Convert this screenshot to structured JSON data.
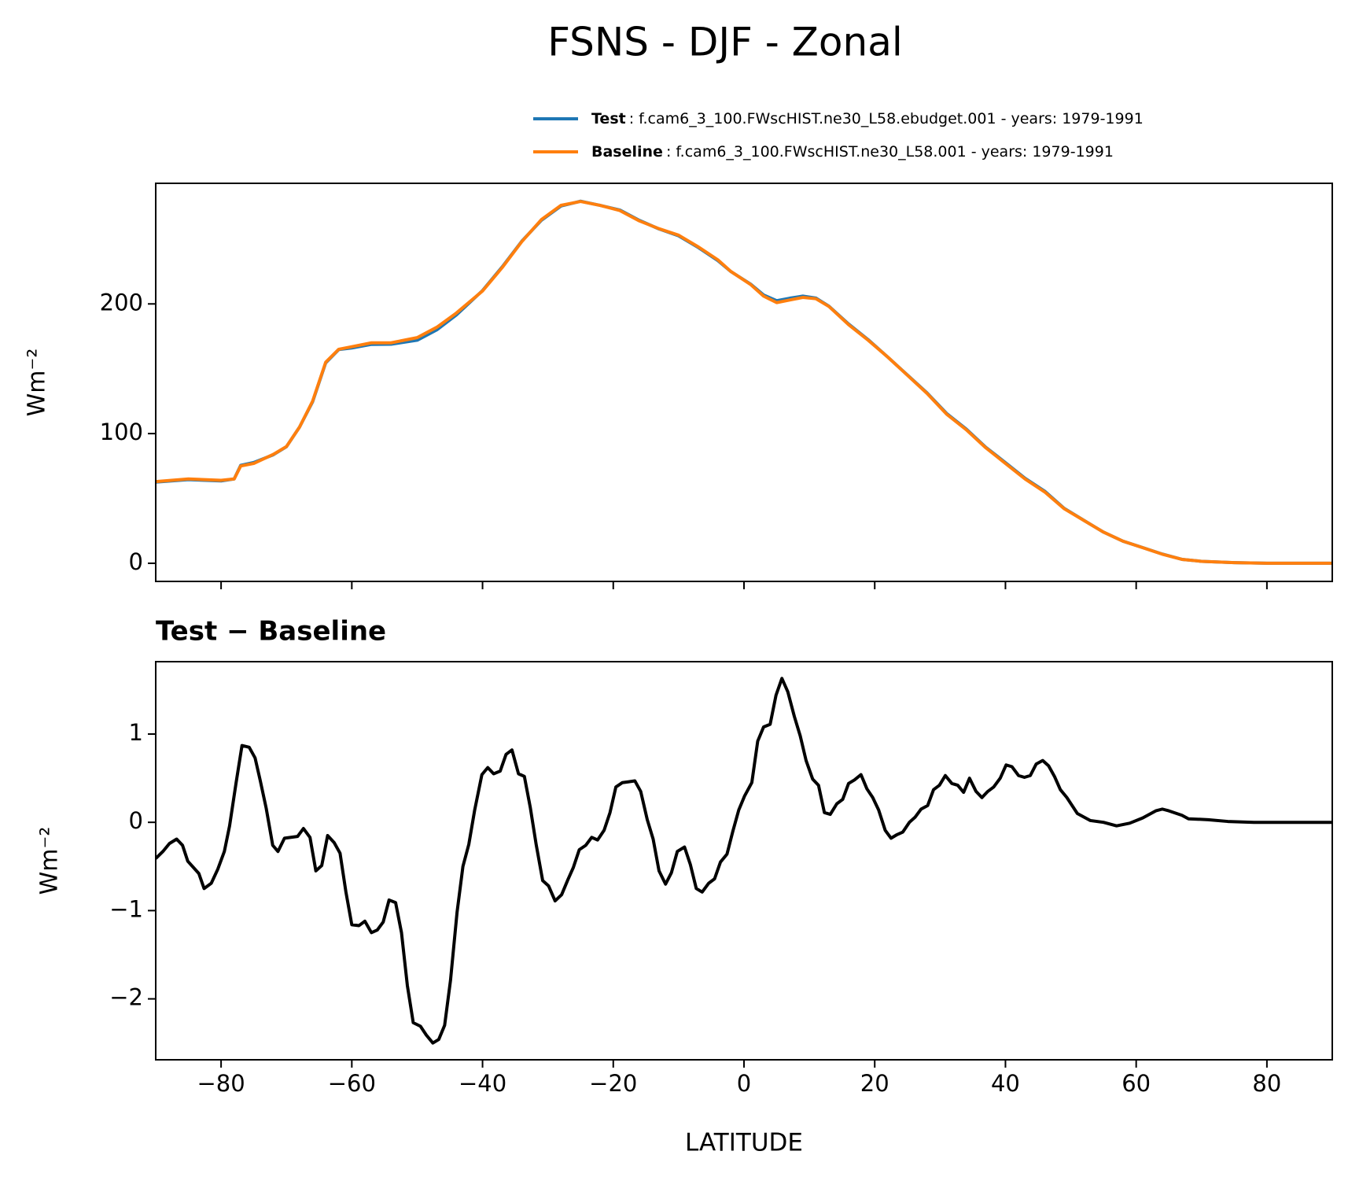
{
  "title": "FSNS - DJF - Zonal",
  "chart_data": [
    {
      "type": "line",
      "ylabel": "Wm⁻²",
      "xlim": [
        -90,
        90
      ],
      "xticks": [
        -80,
        -60,
        -40,
        -20,
        0,
        20,
        40,
        60,
        80
      ],
      "ylim": [
        -14,
        293
      ],
      "yticks": [
        0,
        100,
        200
      ],
      "x": [
        -90,
        -85,
        -80,
        -78,
        -77,
        -75,
        -72,
        -70,
        -68,
        -66,
        -64,
        -62,
        -60,
        -57,
        -54,
        -50,
        -47,
        -44,
        -40,
        -37,
        -34,
        -31,
        -28,
        -25,
        -22,
        -19,
        -16,
        -13,
        -10,
        -7,
        -4,
        -2,
        1,
        3,
        5,
        7,
        9,
        11,
        13,
        16,
        19,
        22,
        25,
        28,
        31,
        34,
        37,
        40,
        43,
        46,
        49,
        52,
        55,
        58,
        61,
        64,
        67,
        70,
        75,
        80,
        90
      ],
      "series": [
        {
          "name": "Test",
          "description": ": f.cam6_3_100.FWscHIST.ne30_L58.ebudget.001 - years: 1979-1991",
          "color": "#1f77b4",
          "values": [
            62.6,
            64.5,
            63.5,
            65,
            75.5,
            77.7,
            83.7,
            89.9,
            105,
            124.5,
            154.5,
            164.8,
            166,
            168.8,
            168.9,
            172,
            180,
            191.5,
            210.3,
            228.5,
            248.3,
            264.5,
            275.5,
            279.2,
            276,
            272.4,
            264.4,
            257.8,
            252.5,
            243.5,
            233.4,
            224.9,
            215.3,
            206.9,
            202.5,
            204.4,
            206,
            204.5,
            198.2,
            184.5,
            172.4,
            159,
            145.2,
            131.4,
            115.5,
            103.5,
            89.4,
            77.6,
            65.5,
            55.6,
            42.3,
            33.1,
            24,
            17,
            12.1,
            7.1,
            3,
            1.5,
            0.5,
            0,
            0
          ]
        },
        {
          "name": "Baseline",
          "description": ": f.cam6_3_100.FWscHIST.ne30_L58.001 - years: 1979-1991",
          "color": "#ff7f0e",
          "values": [
            63,
            65,
            64,
            65,
            75,
            77,
            84,
            90,
            105,
            125,
            155,
            165,
            167,
            170,
            170,
            174,
            182,
            193,
            210,
            228,
            248,
            265,
            276,
            279,
            276,
            272,
            264,
            258,
            253,
            244,
            234,
            225,
            215,
            206,
            201,
            203,
            205,
            204,
            198,
            184,
            172,
            159,
            145,
            131,
            115,
            103,
            89,
            77,
            65,
            55,
            42,
            33,
            24,
            17,
            12,
            7,
            3,
            1.5,
            0.5,
            0,
            0
          ]
        }
      ]
    },
    {
      "type": "line",
      "title": "Test − Baseline",
      "ylabel": "Wm⁻²",
      "xlabel": "LATITUDE",
      "xlim": [
        -90,
        90
      ],
      "xticks": [
        {
          "value": -80,
          "label": "−80"
        },
        {
          "value": -60,
          "label": "−60"
        },
        {
          "value": -40,
          "label": "−40"
        },
        {
          "value": -20,
          "label": "−20"
        },
        0,
        20,
        40,
        60,
        80
      ],
      "ylim": [
        -2.69,
        1.82
      ],
      "yticks": [
        {
          "value": -2,
          "label": "−2"
        },
        {
          "value": -1,
          "label": "−1"
        },
        0,
        1
      ],
      "x": [
        -90,
        -88.9,
        -87.9,
        -86.8,
        -85.9,
        -85.1,
        -83.4,
        -82.6,
        -81.5,
        -80.5,
        -79.5,
        -78.7,
        -77.7,
        -76.8,
        -75.7,
        -74.8,
        -74,
        -73.1,
        -72.1,
        -71.3,
        -70.3,
        -68.3,
        -67.4,
        -66.4,
        -65.5,
        -64.6,
        -63.7,
        -62.7,
        -61.8,
        -60.9,
        -60,
        -58.9,
        -58,
        -57,
        -56.1,
        -55.2,
        -54.3,
        -53.3,
        -52.4,
        -51.5,
        -50.6,
        -49.5,
        -48.6,
        -47.6,
        -46.7,
        -45.8,
        -44.9,
        -43.9,
        -43,
        -42.1,
        -41.2,
        -40.1,
        -39.2,
        -38.3,
        -37.3,
        -36.4,
        -35.5,
        -34.5,
        -33.6,
        -32.7,
        -31.8,
        -30.8,
        -29.9,
        -28.9,
        -27.9,
        -27,
        -26.1,
        -25.2,
        -24.2,
        -23.3,
        -22.4,
        -21.4,
        -20.5,
        -19.6,
        -18.6,
        -17.6,
        -16.7,
        -15.8,
        -14.8,
        -13.9,
        -13,
        -12,
        -11.1,
        -10.2,
        -9.1,
        -8.2,
        -7.3,
        -6.4,
        -5.4,
        -4.5,
        -3.6,
        -2.6,
        -1.7,
        -0.8,
        0.1,
        1.2,
        2.1,
        3,
        4,
        4.9,
        5.8,
        6.7,
        7.7,
        8.6,
        9.5,
        10.5,
        11.4,
        12.3,
        13.2,
        14.2,
        15.1,
        16,
        16.9,
        17.9,
        18.8,
        19.7,
        20.6,
        21.6,
        22.5,
        23.4,
        24.3,
        25.3,
        26.2,
        27.1,
        28.1,
        29,
        29.9,
        30.8,
        31.8,
        32.7,
        33.6,
        34.5,
        35.5,
        36.4,
        37.3,
        38.2,
        39.2,
        40.1,
        41,
        42,
        42.9,
        43.8,
        44.7,
        45.7,
        46.6,
        47.5,
        48.4,
        49.4,
        51,
        53,
        55,
        57,
        59,
        61,
        63,
        64,
        65,
        67,
        68,
        71,
        74,
        78,
        90
      ],
      "series": [
        {
          "color": "#000000",
          "values": [
            -0.41,
            -0.33,
            -0.24,
            -0.19,
            -0.26,
            -0.44,
            -0.58,
            -0.75,
            -0.69,
            -0.53,
            -0.33,
            -0.04,
            0.45,
            0.87,
            0.85,
            0.73,
            0.47,
            0.16,
            -0.26,
            -0.33,
            -0.18,
            -0.16,
            -0.07,
            -0.17,
            -0.55,
            -0.49,
            -0.15,
            -0.23,
            -0.35,
            -0.79,
            -1.16,
            -1.17,
            -1.12,
            -1.25,
            -1.22,
            -1.13,
            -0.88,
            -0.91,
            -1.25,
            -1.85,
            -2.27,
            -2.31,
            -2.41,
            -2.5,
            -2.46,
            -2.3,
            -1.79,
            -1.02,
            -0.5,
            -0.25,
            0.14,
            0.54,
            0.62,
            0.55,
            0.58,
            0.77,
            0.82,
            0.55,
            0.52,
            0.17,
            -0.25,
            -0.66,
            -0.72,
            -0.89,
            -0.82,
            -0.66,
            -0.51,
            -0.31,
            -0.26,
            -0.17,
            -0.2,
            -0.09,
            0.11,
            0.4,
            0.45,
            0.46,
            0.47,
            0.35,
            0.03,
            -0.19,
            -0.55,
            -0.7,
            -0.57,
            -0.33,
            -0.28,
            -0.48,
            -0.75,
            -0.79,
            -0.69,
            -0.64,
            -0.45,
            -0.36,
            -0.1,
            0.14,
            0.3,
            0.45,
            0.92,
            1.08,
            1.11,
            1.44,
            1.63,
            1.48,
            1.2,
            0.98,
            0.7,
            0.49,
            0.42,
            0.11,
            0.09,
            0.21,
            0.26,
            0.44,
            0.48,
            0.54,
            0.38,
            0.28,
            0.14,
            -0.09,
            -0.18,
            -0.14,
            -0.11,
            0,
            0.06,
            0.15,
            0.19,
            0.37,
            0.42,
            0.53,
            0.44,
            0.42,
            0.34,
            0.5,
            0.35,
            0.28,
            0.35,
            0.4,
            0.5,
            0.65,
            0.63,
            0.53,
            0.51,
            0.53,
            0.66,
            0.7,
            0.64,
            0.52,
            0.37,
            0.28,
            0.1,
            0.02,
            0,
            -0.04,
            -0.01,
            0.05,
            0.13,
            0.15,
            0.13,
            0.08,
            0.04,
            0.03,
            0.01,
            0,
            0
          ]
        }
      ]
    }
  ]
}
